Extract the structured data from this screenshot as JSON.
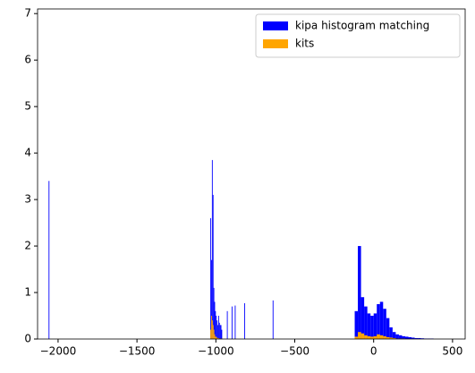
{
  "chart_data": {
    "type": "histogram",
    "bins": [
      -2060,
      -2055,
      -1035,
      -1030,
      -1025,
      -1020,
      -1015,
      -1010,
      -1005,
      -1000,
      -995,
      -990,
      -985,
      -980,
      -975,
      -970,
      -965,
      -960,
      -930,
      -925,
      -900,
      -895,
      -880,
      -875,
      -820,
      -815,
      -640,
      -635,
      -120,
      -100,
      -80,
      -60,
      -40,
      -20,
      0,
      20,
      40,
      60,
      80,
      100,
      120,
      140,
      160,
      180,
      200,
      220,
      240,
      260,
      280,
      300,
      320,
      340,
      360,
      380
    ],
    "series": [
      {
        "name": "kipa histogram matching",
        "color": "#0000ff",
        "values": [
          3.4,
          0,
          2.6,
          1.7,
          3.85,
          3.1,
          1.1,
          0.8,
          0.6,
          0.5,
          0.4,
          0.3,
          0.5,
          0.35,
          0.3,
          0.3,
          0.2,
          0,
          0.6,
          0,
          0.7,
          0,
          0.72,
          0,
          0.77,
          0,
          0.83,
          0,
          0.6,
          2.0,
          0.9,
          0.7,
          0.55,
          0.5,
          0.55,
          0.75,
          0.8,
          0.65,
          0.45,
          0.25,
          0.15,
          0.1,
          0.08,
          0.06,
          0.05,
          0.04,
          0.03,
          0.02,
          0.02,
          0.015,
          0.01,
          0.01,
          0.01
        ]
      },
      {
        "name": "kits",
        "color": "#ffa500",
        "values": [
          0,
          0,
          0.2,
          0.5,
          0.4,
          0.3,
          0.2,
          0.1,
          0.05,
          0.05,
          0.03,
          0.02,
          0.02,
          0.01,
          0.01,
          0.01,
          0.01,
          0,
          0,
          0,
          0,
          0,
          0,
          0,
          0,
          0,
          0,
          0,
          0.05,
          0.15,
          0.12,
          0.08,
          0.06,
          0.05,
          0.06,
          0.1,
          0.08,
          0.06,
          0.04,
          0.03,
          0.02,
          0.01,
          0.01,
          0.01,
          0,
          0,
          0,
          0,
          0,
          0,
          0,
          0,
          0
        ]
      }
    ],
    "xlim": [
      -2130,
      580
    ],
    "xticks": [
      {
        "value": -2000,
        "label": "−2000"
      },
      {
        "value": -1500,
        "label": "−1500"
      },
      {
        "value": -1000,
        "label": "−1000"
      },
      {
        "value": -500,
        "label": "−500"
      },
      0,
      500
    ],
    "ylim": [
      0,
      7.1
    ],
    "yticks": [
      0,
      1,
      2,
      3,
      4,
      5,
      6,
      7
    ],
    "legend": "upper right"
  }
}
